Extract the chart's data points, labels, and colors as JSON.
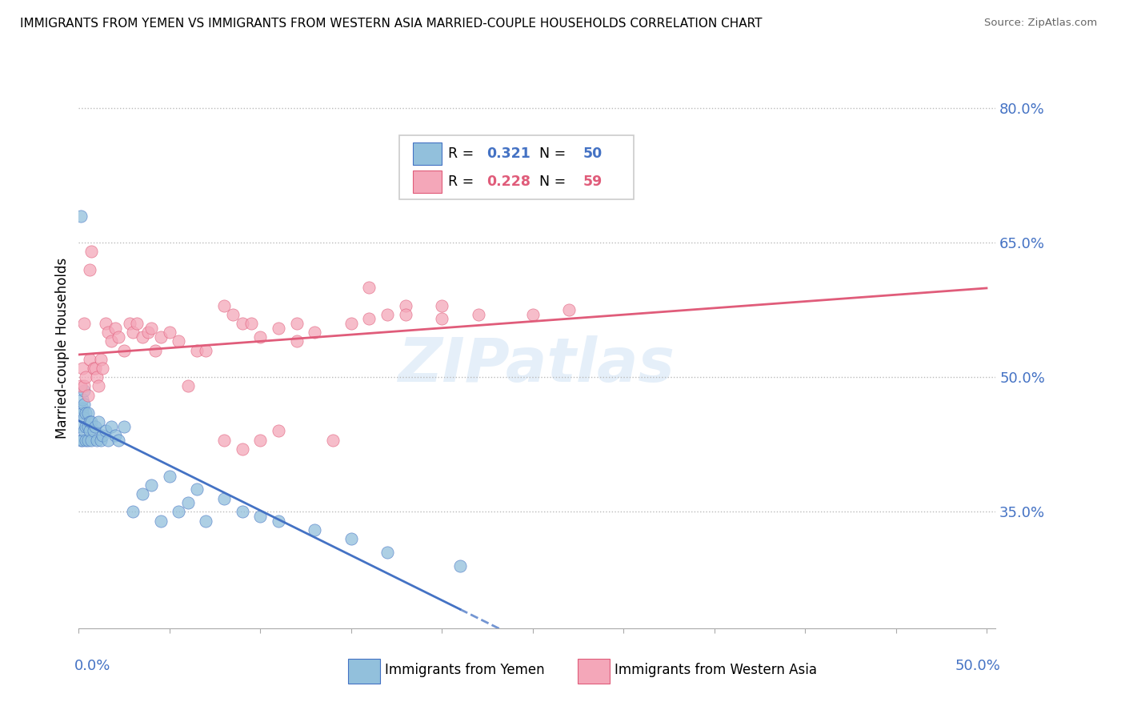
{
  "title": "IMMIGRANTS FROM YEMEN VS IMMIGRANTS FROM WESTERN ASIA MARRIED-COUPLE HOUSEHOLDS CORRELATION CHART",
  "source": "Source: ZipAtlas.com",
  "ylabel": "Married-couple Households",
  "right_ytick_vals": [
    0.35,
    0.5,
    0.65,
    0.8
  ],
  "right_ytick_labels": [
    "35.0%",
    "50.0%",
    "65.0%",
    "80.0%"
  ],
  "legend_r_yemen": "0.321",
  "legend_n_yemen": "50",
  "legend_r_western": "0.228",
  "legend_n_western": "59",
  "color_yemen": "#92C0DC",
  "color_western": "#F4A7B9",
  "color_line_yemen": "#4472C4",
  "color_line_western": "#E05C7A",
  "watermark": "ZIPatlas",
  "xlim": [
    0.0,
    0.505
  ],
  "ylim": [
    0.22,
    0.845
  ],
  "yemen_x": [
    0.001,
    0.001,
    0.001,
    0.002,
    0.002,
    0.002,
    0.002,
    0.003,
    0.003,
    0.003,
    0.003,
    0.004,
    0.004,
    0.004,
    0.005,
    0.005,
    0.005,
    0.006,
    0.006,
    0.007,
    0.007,
    0.008,
    0.009,
    0.01,
    0.011,
    0.012,
    0.013,
    0.015,
    0.016,
    0.018,
    0.02,
    0.022,
    0.025,
    0.03,
    0.035,
    0.04,
    0.045,
    0.05,
    0.055,
    0.06,
    0.065,
    0.07,
    0.08,
    0.09,
    0.1,
    0.11,
    0.13,
    0.15,
    0.17,
    0.21
  ],
  "yemen_y": [
    0.68,
    0.445,
    0.43,
    0.465,
    0.475,
    0.46,
    0.43,
    0.485,
    0.47,
    0.455,
    0.44,
    0.46,
    0.445,
    0.43,
    0.46,
    0.445,
    0.43,
    0.45,
    0.44,
    0.45,
    0.43,
    0.44,
    0.445,
    0.43,
    0.45,
    0.43,
    0.435,
    0.44,
    0.43,
    0.445,
    0.435,
    0.43,
    0.445,
    0.35,
    0.37,
    0.38,
    0.34,
    0.39,
    0.35,
    0.36,
    0.375,
    0.34,
    0.365,
    0.35,
    0.345,
    0.34,
    0.33,
    0.32,
    0.305,
    0.29
  ],
  "western_x": [
    0.001,
    0.002,
    0.003,
    0.003,
    0.004,
    0.005,
    0.006,
    0.006,
    0.007,
    0.008,
    0.009,
    0.01,
    0.011,
    0.012,
    0.013,
    0.015,
    0.016,
    0.018,
    0.02,
    0.022,
    0.025,
    0.028,
    0.03,
    0.032,
    0.035,
    0.038,
    0.04,
    0.042,
    0.045,
    0.05,
    0.055,
    0.06,
    0.065,
    0.07,
    0.08,
    0.085,
    0.09,
    0.095,
    0.1,
    0.11,
    0.12,
    0.13,
    0.15,
    0.16,
    0.17,
    0.18,
    0.2,
    0.22,
    0.25,
    0.27,
    0.08,
    0.09,
    0.1,
    0.11,
    0.12,
    0.14,
    0.16,
    0.18,
    0.2
  ],
  "western_y": [
    0.49,
    0.51,
    0.56,
    0.49,
    0.5,
    0.48,
    0.62,
    0.52,
    0.64,
    0.51,
    0.51,
    0.5,
    0.49,
    0.52,
    0.51,
    0.56,
    0.55,
    0.54,
    0.555,
    0.545,
    0.53,
    0.56,
    0.55,
    0.56,
    0.545,
    0.55,
    0.555,
    0.53,
    0.545,
    0.55,
    0.54,
    0.49,
    0.53,
    0.53,
    0.58,
    0.57,
    0.56,
    0.56,
    0.545,
    0.555,
    0.54,
    0.55,
    0.56,
    0.565,
    0.57,
    0.58,
    0.565,
    0.57,
    0.57,
    0.575,
    0.43,
    0.42,
    0.43,
    0.44,
    0.56,
    0.43,
    0.6,
    0.57,
    0.58
  ]
}
